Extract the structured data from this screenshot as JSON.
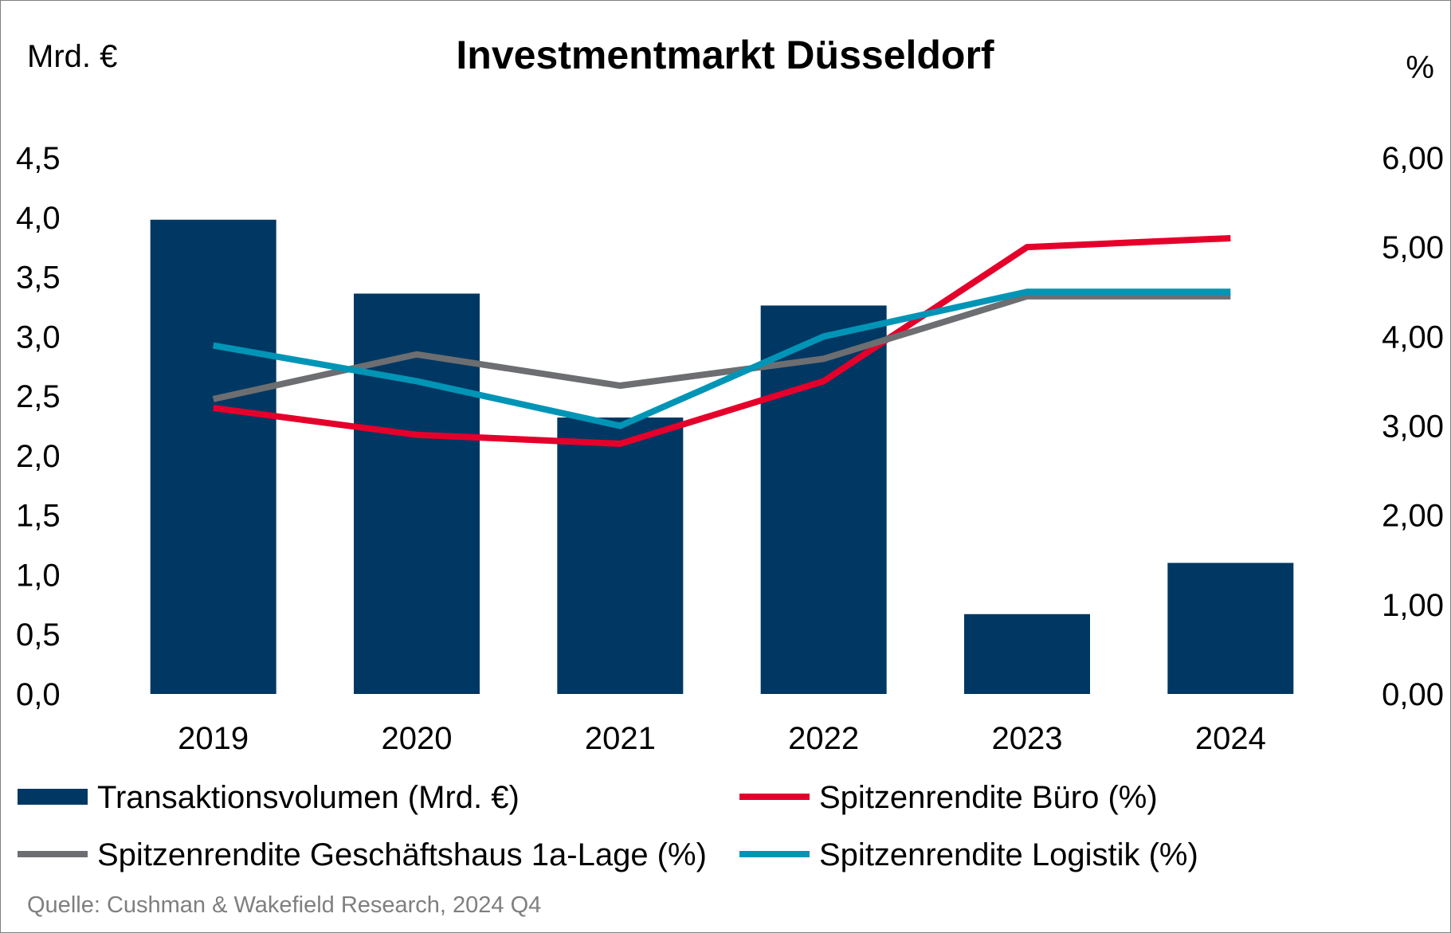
{
  "chart_data": {
    "type": "bar",
    "title": "Investmentmarkt Düsseldorf",
    "ylabel_left": "Mrd. €",
    "ylabel_right": "%",
    "categories": [
      "2019",
      "2020",
      "2021",
      "2022",
      "2023",
      "2024"
    ],
    "y_left": {
      "range": [
        0,
        4.5
      ],
      "ticks": [
        0,
        0.5,
        1,
        1.5,
        2,
        2.5,
        3,
        3.5,
        4,
        4.5
      ],
      "tick_labels": [
        "0,0",
        "0,5",
        "1,0",
        "1,5",
        "2,0",
        "2,5",
        "3,0",
        "3,5",
        "4,0",
        "4,5"
      ]
    },
    "y_right": {
      "range": [
        0,
        6
      ],
      "ticks": [
        0,
        1,
        2,
        3,
        4,
        5,
        6
      ],
      "tick_labels": [
        "0,00",
        "1,00",
        "2,00",
        "3,00",
        "4,00",
        "5,00",
        "6,00"
      ]
    },
    "grid": false,
    "legend_position": "bottom",
    "series": [
      {
        "name": "Transaktionsvolumen (Mrd. €)",
        "kind": "bar",
        "axis": "left",
        "color": "#003863",
        "values": [
          3.98,
          3.36,
          2.32,
          3.26,
          0.67,
          1.1
        ]
      },
      {
        "name": "Spitzenrendite Büro (%)",
        "kind": "line",
        "axis": "right",
        "color": "#e4002b",
        "values": [
          3.2,
          2.9,
          2.8,
          3.5,
          5.0,
          5.1
        ]
      },
      {
        "name": "Spitzenrendite Geschäftshaus 1a-Lage (%)",
        "kind": "line",
        "axis": "right",
        "color": "#6d6e71",
        "values": [
          3.3,
          3.8,
          3.45,
          3.75,
          4.45,
          4.45
        ]
      },
      {
        "name": "Spitzenrendite Logistik (%)",
        "kind": "line",
        "axis": "right",
        "color": "#0095b6",
        "values": [
          3.9,
          3.5,
          3.0,
          4.0,
          4.5,
          4.5
        ]
      }
    ],
    "source": "Quelle: Cushman & Wakefield Research, 2024 Q4"
  }
}
